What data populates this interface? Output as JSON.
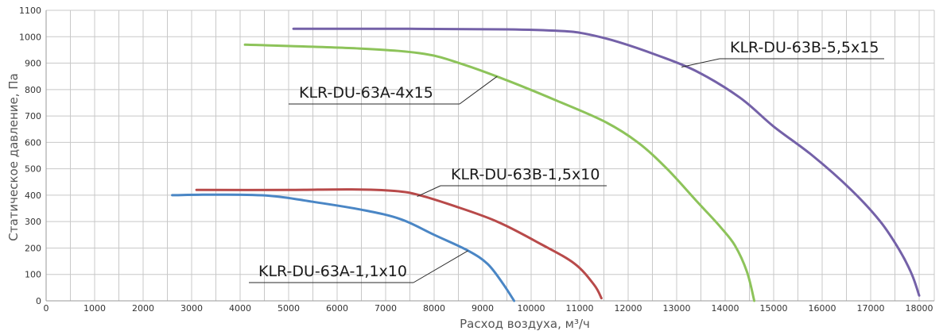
{
  "chart_data": {
    "type": "line",
    "xlabel": "Расход воздуха, м³/ч",
    "ylabel": "Статическое давление, Па",
    "xlim": [
      0,
      18300
    ],
    "ylim": [
      0,
      1100
    ],
    "x_ticks": [
      0,
      1000,
      2000,
      3000,
      4000,
      5000,
      6000,
      7000,
      8000,
      9000,
      10000,
      11000,
      12000,
      13000,
      14000,
      15000,
      16000,
      17000,
      18000
    ],
    "y_ticks": [
      0,
      100,
      200,
      300,
      400,
      500,
      600,
      700,
      800,
      900,
      1000,
      1100
    ],
    "grid": true,
    "series": [
      {
        "name": "KLR-DU-63A-1,1x10",
        "color": "#4a86c5",
        "x": [
          2600,
          3500,
          4600,
          5500,
          6500,
          7300,
          8000,
          8700,
          9100,
          9400,
          9650
        ],
        "y": [
          400,
          402,
          398,
          375,
          345,
          310,
          250,
          190,
          140,
          70,
          0
        ]
      },
      {
        "name": "KLR-DU-63B-1,5x10",
        "color": "#b84a4a",
        "x": [
          3100,
          5000,
          6300,
          7200,
          7700,
          8400,
          9300,
          10200,
          10900,
          11300,
          11450
        ],
        "y": [
          420,
          420,
          422,
          416,
          400,
          360,
          300,
          215,
          140,
          60,
          10
        ]
      },
      {
        "name": "KLR-DU-63A-4x15",
        "color": "#8dc35a",
        "x": [
          4100,
          6500,
          7800,
          8600,
          9500,
          10500,
          11500,
          12200,
          12800,
          13400,
          13900,
          14200,
          14450,
          14600
        ],
        "y": [
          970,
          955,
          935,
          895,
          835,
          760,
          680,
          600,
          500,
          380,
          280,
          210,
          110,
          0
        ]
      },
      {
        "name": "KLR-DU-63B-5,5x15",
        "color": "#7461a8",
        "x": [
          5100,
          7500,
          9500,
          10600,
          11100,
          11800,
          12600,
          13400,
          14300,
          15000,
          15800,
          16600,
          17200,
          17600,
          17850,
          18000
        ],
        "y": [
          1030,
          1030,
          1028,
          1022,
          1012,
          980,
          930,
          870,
          770,
          660,
          550,
          420,
          300,
          190,
          100,
          20
        ]
      }
    ],
    "annotations": [
      {
        "label_index": 3,
        "text": "KLR-DU-63B-5,5x15",
        "anchor_x": 13100,
        "anchor_y": 885
      },
      {
        "label_index": 2,
        "text": "KLR-DU-63A-4x15",
        "anchor_x": 9300,
        "anchor_y": 850
      },
      {
        "label_index": 1,
        "text": "KLR-DU-63B-1,5x10",
        "anchor_x": 7650,
        "anchor_y": 395
      },
      {
        "label_index": 0,
        "text": "KLR-DU-63A-1,1x10",
        "anchor_x": 8700,
        "anchor_y": 190
      }
    ]
  }
}
